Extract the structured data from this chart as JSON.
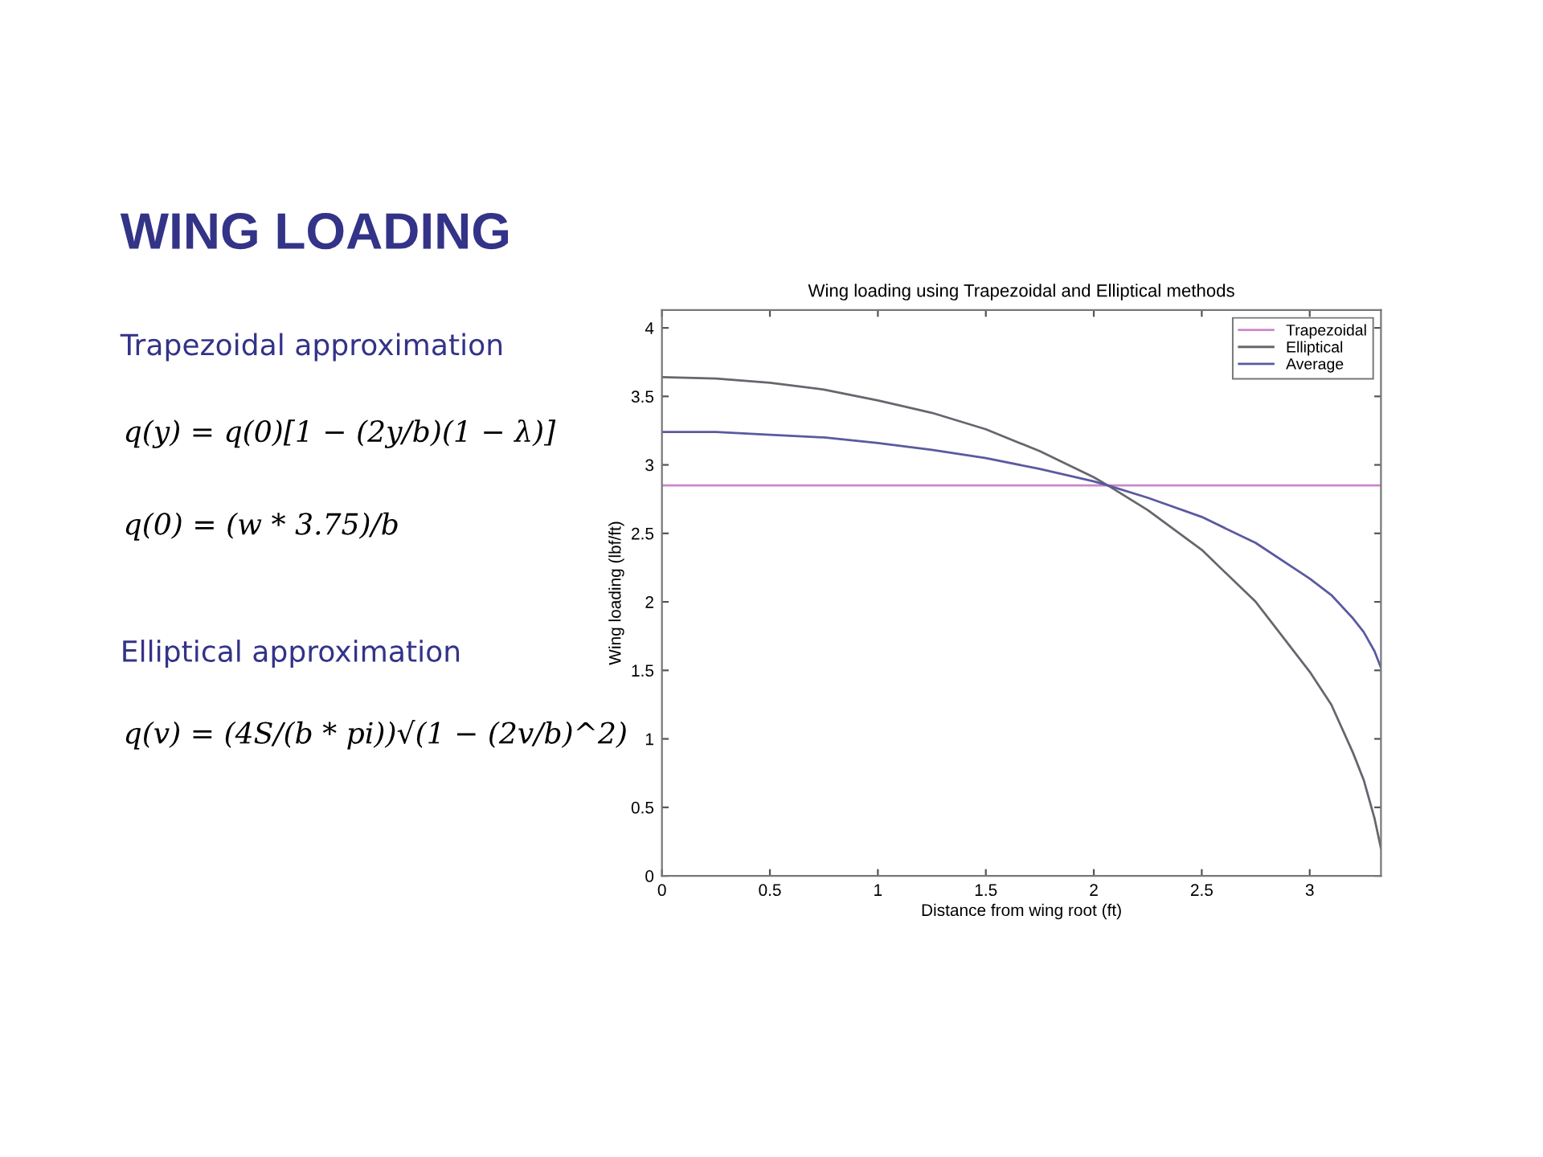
{
  "chart_data": {
    "type": "line",
    "title": "WING LOADING",
    "subtitle": "Wing loading using Trapezoidal and Elliptical methods",
    "xlabel": "Distance from wing root (ft)",
    "ylabel": "Wing loading (lbf/ft)",
    "annotations": [
      "Trapezoidal approximation",
      "q(y) = q(0)[1 − (2y/b)(1 − λ)]",
      "q(0) = (w * 3.75)/b",
      "Elliptical approximation",
      "q(v) = (4S/(b * pi))√(1 − (2v/b)^2)"
    ],
    "series": [
      {
        "name": "Trapezoidal",
        "color": "#cc88cc",
        "x": [
          0,
          3.33
        ],
        "values": [
          2.85,
          2.85
        ]
      },
      {
        "name": "Elliptical",
        "color": "#66666e",
        "x": [
          0,
          0.25,
          0.5,
          0.75,
          1.0,
          1.25,
          1.5,
          1.75,
          2.0,
          2.065,
          2.25,
          2.5,
          2.75,
          3.0,
          3.1,
          3.2,
          3.25,
          3.3,
          3.33
        ],
        "values": [
          3.64,
          3.63,
          3.6,
          3.55,
          3.47,
          3.38,
          3.26,
          3.1,
          2.91,
          2.85,
          2.67,
          2.38,
          2.0,
          1.49,
          1.25,
          0.9,
          0.7,
          0.42,
          0.2
        ]
      },
      {
        "name": "Average",
        "color": "#5a5aa0",
        "x": [
          0,
          0.25,
          0.5,
          0.75,
          1.0,
          1.25,
          1.5,
          1.75,
          2.0,
          2.065,
          2.25,
          2.5,
          2.75,
          3.0,
          3.1,
          3.2,
          3.25,
          3.3,
          3.33
        ],
        "values": [
          3.24,
          3.24,
          3.22,
          3.2,
          3.16,
          3.11,
          3.05,
          2.97,
          2.88,
          2.85,
          2.76,
          2.62,
          2.43,
          2.17,
          2.05,
          1.88,
          1.78,
          1.64,
          1.52
        ]
      }
    ],
    "xlim": [
      0,
      3.33
    ],
    "ylim": [
      0,
      4.13
    ],
    "xticks": [
      0,
      0.5,
      1,
      1.5,
      2,
      2.5,
      3
    ],
    "yticks": [
      0,
      0.5,
      1,
      1.5,
      2,
      2.5,
      3,
      3.5,
      4
    ],
    "legend": "top right",
    "marker": "none",
    "line_style": "solid"
  }
}
